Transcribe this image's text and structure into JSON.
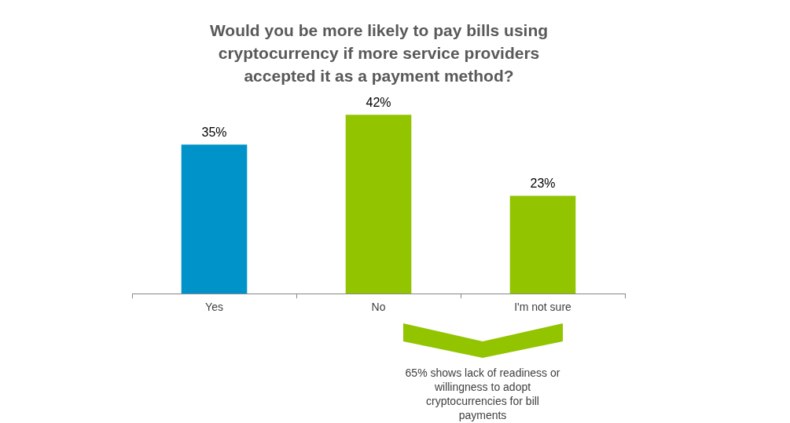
{
  "chart_data": {
    "type": "bar",
    "title": "Would you be more likely to pay bills using cryptocurrency if more service providers accepted it as a payment method?",
    "categories": [
      "Yes",
      "No",
      "I'm not sure"
    ],
    "values": [
      35,
      42,
      23
    ],
    "colors": [
      "#0093c9",
      "#92c400",
      "#92c400"
    ],
    "value_labels": [
      "35%",
      "42%",
      "23%"
    ],
    "grid": false,
    "legend": false,
    "tick_labels": "x",
    "annotations": [
      "65% shows lack of readiness or willingness to adopt cryptocurrencies for bill payments"
    ]
  }
}
